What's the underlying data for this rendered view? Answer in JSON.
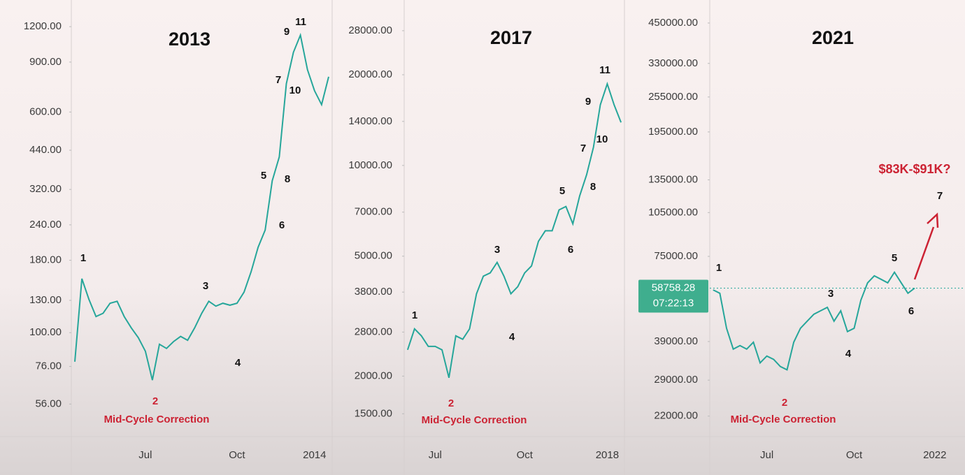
{
  "chart_data": [
    {
      "type": "line",
      "title": "2013",
      "yscale": "log",
      "color": "#26a69a",
      "categories": [
        null,
        null,
        null,
        null,
        null,
        null,
        null,
        null,
        null,
        null,
        "Jul",
        null,
        null,
        null,
        null,
        null,
        null,
        null,
        null,
        null,
        null,
        null,
        null,
        "Oct",
        null,
        null,
        null,
        null,
        null,
        null,
        null,
        null,
        null,
        null,
        "2014",
        null,
        null
      ],
      "values": [
        79,
        155,
        131,
        114,
        117,
        127,
        129,
        114,
        104,
        96,
        86,
        68,
        91,
        88,
        93,
        97,
        94,
        104,
        117,
        129,
        124,
        127,
        125,
        127,
        139,
        164,
        200,
        230,
        343,
        417,
        755,
        974,
        1120,
        846,
        713,
        637,
        799
      ],
      "ylim": [
        43,
        1490
      ],
      "yticks": [
        {
          "value": 56,
          "label": "56.00"
        },
        {
          "value": 76,
          "label": "76.00"
        },
        {
          "value": 100,
          "label": "100.00"
        },
        {
          "value": 130,
          "label": "130.00"
        },
        {
          "value": 180,
          "label": "180.00"
        },
        {
          "value": 240,
          "label": "240.00"
        },
        {
          "value": 320,
          "label": "320.00"
        },
        {
          "value": 440,
          "label": "440.00"
        },
        {
          "value": 600,
          "label": "600.00"
        },
        {
          "value": 900,
          "label": "900.00"
        },
        {
          "value": 1200,
          "label": "1200.00"
        }
      ],
      "annotations": [
        "1",
        "2",
        "3",
        "4",
        "5",
        "6",
        "7",
        "8",
        "9",
        "10",
        "11"
      ],
      "note": "Mid-Cycle Correction"
    },
    {
      "type": "line",
      "title": "2017",
      "yscale": "log",
      "color": "#26a69a",
      "categories": [
        null,
        null,
        null,
        null,
        "Jul",
        null,
        null,
        null,
        null,
        null,
        null,
        null,
        null,
        null,
        null,
        null,
        null,
        "Oct",
        null,
        null,
        null,
        null,
        null,
        null,
        null,
        null,
        null,
        null,
        null,
        "2018",
        null,
        null
      ],
      "values": [
        2445,
        2870,
        2720,
        2510,
        2510,
        2445,
        1975,
        2720,
        2650,
        2870,
        3750,
        4290,
        4400,
        4770,
        4290,
        3750,
        3960,
        4400,
        4640,
        5600,
        6070,
        6070,
        7120,
        7310,
        6400,
        7930,
        9320,
        11500,
        15900,
        18650,
        15900,
        13900
      ],
      "ylim": [
        1260,
        35400
      ],
      "yticks": [
        {
          "value": 1500,
          "label": "1500.00"
        },
        {
          "value": 2000,
          "label": "2000.00"
        },
        {
          "value": 2800,
          "label": "2800.00"
        },
        {
          "value": 3800,
          "label": "3800.00"
        },
        {
          "value": 5000,
          "label": "5000.00"
        },
        {
          "value": 7000,
          "label": "7000.00"
        },
        {
          "value": 10000,
          "label": "10000.00"
        },
        {
          "value": 14000,
          "label": "14000.00"
        },
        {
          "value": 20000,
          "label": "20000.00"
        },
        {
          "value": 28000,
          "label": "28000.00"
        }
      ],
      "annotations": [
        "1",
        "2",
        "3",
        "4",
        "5",
        "6",
        "7",
        "8",
        "9",
        "10",
        "11"
      ],
      "note": "Mid-Cycle Correction"
    },
    {
      "type": "line",
      "title": "2021",
      "yscale": "log",
      "color": "#26a69a",
      "categories": [
        null,
        null,
        null,
        null,
        null,
        null,
        null,
        null,
        "Jul",
        null,
        null,
        null,
        null,
        null,
        null,
        null,
        null,
        null,
        null,
        null,
        null,
        "Oct",
        null,
        null,
        null,
        null,
        null,
        null,
        null,
        null,
        null,
        null,
        null,
        "2022",
        null,
        null,
        null,
        null
      ],
      "values": [
        58000,
        56500,
        43200,
        36800,
        37800,
        36800,
        38800,
        33100,
        34900,
        34000,
        32200,
        31400,
        38800,
        43200,
        45600,
        48100,
        49400,
        50700,
        45600,
        49400,
        42100,
        43200,
        53600,
        61200,
        64600,
        62900,
        61200,
        66400,
        61200,
        56500,
        58758.28,
        null,
        null,
        null,
        null,
        null,
        null,
        null
      ],
      "ylim": [
        18800,
        537000
      ],
      "yticks": [
        {
          "value": 22000,
          "label": "22000.00"
        },
        {
          "value": 29000,
          "label": "29000.00"
        },
        {
          "value": 39000,
          "label": "39000.00"
        },
        {
          "value": 75000,
          "label": "75000.00"
        },
        {
          "value": 105000,
          "label": "105000.00"
        },
        {
          "value": 135000,
          "label": "135000.00"
        },
        {
          "value": 195000,
          "label": "195000.00"
        },
        {
          "value": 255000,
          "label": "255000.00"
        },
        {
          "value": 330000,
          "label": "330000.00"
        },
        {
          "value": 450000,
          "label": "450000.00"
        }
      ],
      "last_price": 58758.28,
      "countdown": "07:22:13",
      "annotations": [
        "1",
        "2",
        "3",
        "4",
        "5",
        "6",
        "7"
      ],
      "target": "$83K-$91K?",
      "note": "Mid-Cycle Correction"
    }
  ]
}
